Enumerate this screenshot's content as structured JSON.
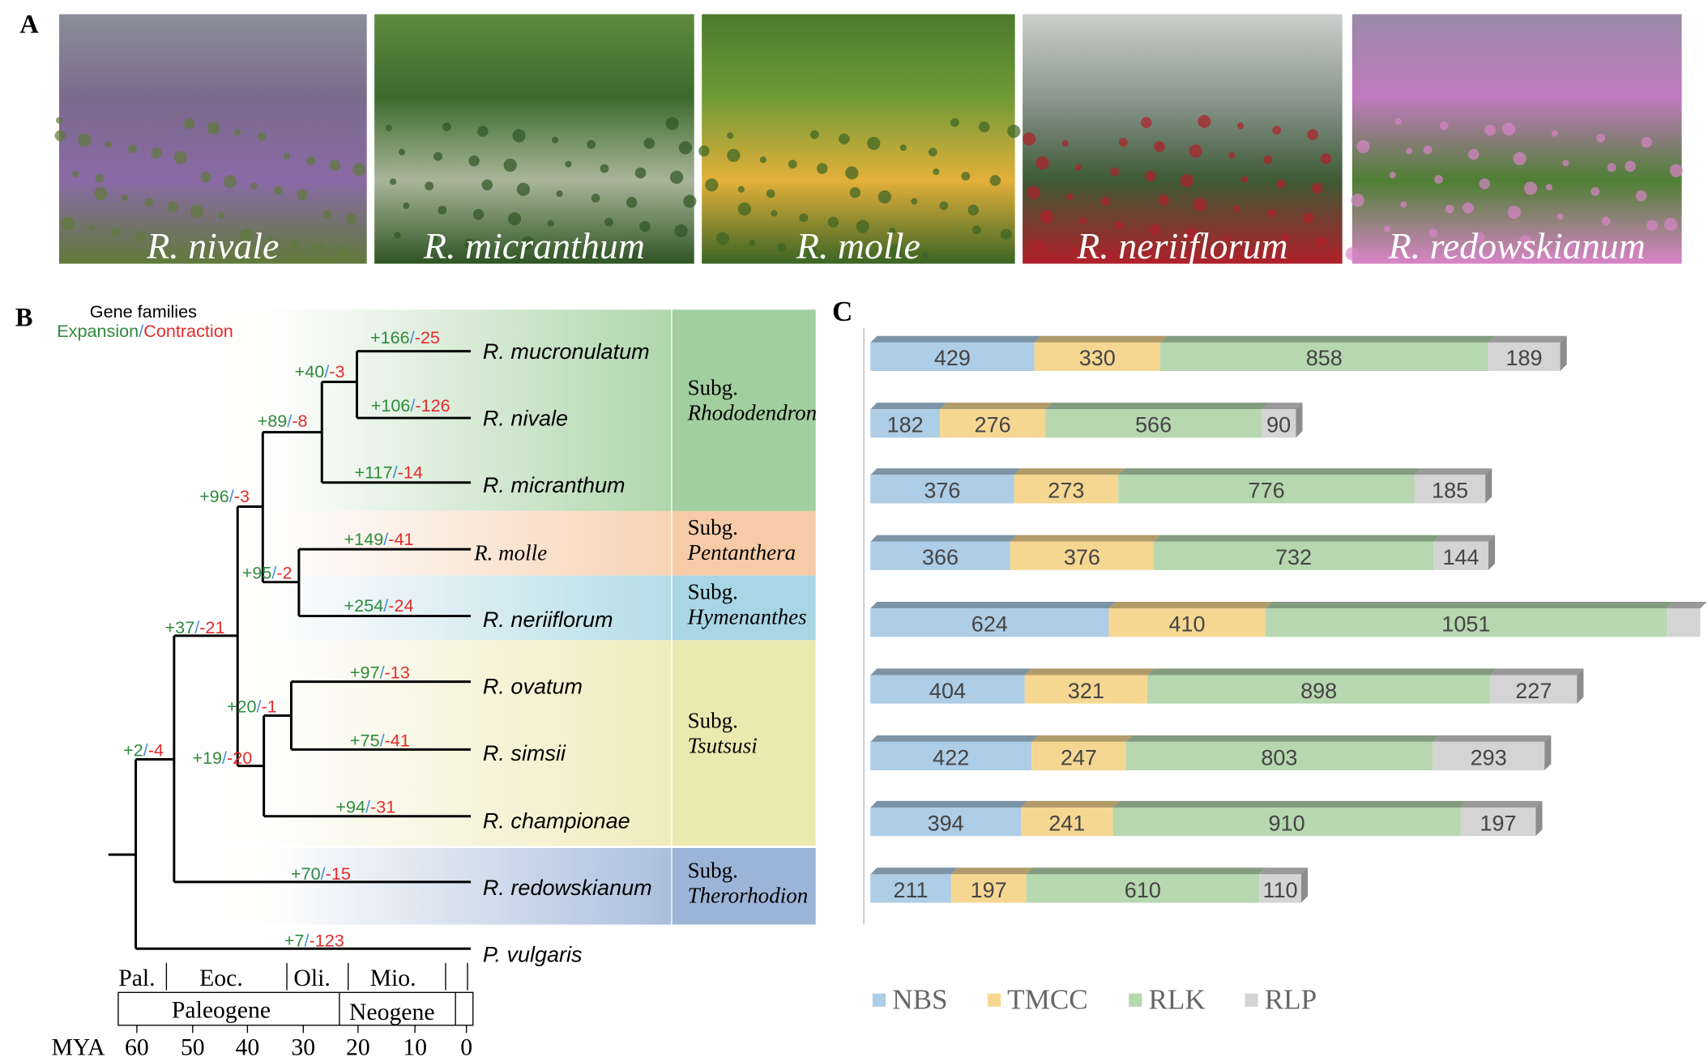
{
  "panel_labels": {
    "a": "A",
    "b": "B",
    "c": "C"
  },
  "photos": [
    {
      "label": "R. nivale",
      "colors": [
        "#8a8f9a",
        "#7c6a8c",
        "#8a6aa6",
        "#5f7a3a"
      ]
    },
    {
      "label": "R. micranthum",
      "colors": [
        "#5e8a3e",
        "#3d6a2c",
        "#a8b59a",
        "#2f5424"
      ]
    },
    {
      "label": "R. molle",
      "colors": [
        "#4d7a2e",
        "#6f9a36",
        "#e3b03a",
        "#3a6424"
      ]
    },
    {
      "label": "R. neriiflorum",
      "colors": [
        "#c9d0cc",
        "#8c9890",
        "#3e5a36",
        "#b0202a"
      ]
    },
    {
      "label": "R. redowskianum",
      "colors": [
        "#9a8aa8",
        "#c07abf",
        "#4f7f34",
        "#d884c8"
      ]
    }
  ],
  "tree": {
    "legend_title": "Gene families",
    "legend_expansion": "Expansion",
    "legend_sep": "/",
    "legend_contraction": "Contraction",
    "colors": {
      "expansion": "#2e8b3e",
      "contraction": "#e32b2b",
      "sep": "#4a90d9"
    },
    "taxa": [
      "R. mucronulatum",
      "R. nivale",
      "R. micranthum",
      "R. molle",
      "R. neriiflorum",
      "R. ovatum",
      "R. simsii",
      "R. championae",
      "R. redowskianum",
      "P. vulgaris"
    ],
    "branch_changes": [
      {
        "gain": "+166",
        "loss": "-25"
      },
      {
        "gain": "+40",
        "loss": "-3"
      },
      {
        "gain": "+106",
        "loss": "-126"
      },
      {
        "gain": "+89",
        "loss": "-8"
      },
      {
        "gain": "+117",
        "loss": "-14"
      },
      {
        "gain": "+96",
        "loss": "-3"
      },
      {
        "gain": "+149",
        "loss": "-41"
      },
      {
        "gain": "+95",
        "loss": "-2"
      },
      {
        "gain": "+254",
        "loss": "-24"
      },
      {
        "gain": "+37",
        "loss": "-21"
      },
      {
        "gain": "+97",
        "loss": "-13"
      },
      {
        "gain": "+20",
        "loss": "-1"
      },
      {
        "gain": "+75",
        "loss": "-41"
      },
      {
        "gain": "+2",
        "loss": "-4"
      },
      {
        "gain": "+19",
        "loss": "-20"
      },
      {
        "gain": "+94",
        "loss": "-31"
      },
      {
        "gain": "+70",
        "loss": "-15"
      },
      {
        "gain": "+7",
        "loss": "-123"
      }
    ],
    "subgenera": [
      {
        "line1": "Subg.",
        "line2": "Rhododendron",
        "color": "#a2cf9f"
      },
      {
        "line1": "Subg.",
        "line2": "Pentanthera",
        "color": "#f6cba8"
      },
      {
        "line1": "Subg.",
        "line2": "Hymenanthes",
        "color": "#a8d6e4"
      },
      {
        "line1": "Subg.",
        "line2": "Tsutsusi",
        "color": "#ece9b0"
      },
      {
        "line1": "Subg.",
        "line2": "Therorhodion",
        "color": "#9cb4d8"
      }
    ],
    "epochs": [
      "Pal.",
      "Eoc.",
      "Oli.",
      "Mio."
    ],
    "periods": [
      "Paleogene",
      "Neogene"
    ],
    "axis_label": "MYA",
    "ticks": [
      "60",
      "50",
      "40",
      "30",
      "20",
      "10",
      "0"
    ]
  },
  "chart_data": {
    "type": "bar",
    "orientation": "horizontal-stacked",
    "series": [
      {
        "name": "NBS",
        "color": "#aecde6",
        "values": [
          429,
          182,
          376,
          366,
          624,
          404,
          422,
          394,
          211
        ]
      },
      {
        "name": "TMCC",
        "color": "#f6d792",
        "values": [
          330,
          276,
          273,
          376,
          410,
          321,
          247,
          241,
          197
        ]
      },
      {
        "name": "RLK",
        "color": "#b6d7b0",
        "values": [
          858,
          566,
          776,
          732,
          1051,
          898,
          803,
          910,
          610
        ]
      },
      {
        "name": "RLP",
        "color": "#d4d4d4",
        "values": [
          189,
          90,
          185,
          144,
          null,
          227,
          293,
          197,
          110
        ]
      }
    ],
    "legend_position": "bottom",
    "grid": false
  }
}
